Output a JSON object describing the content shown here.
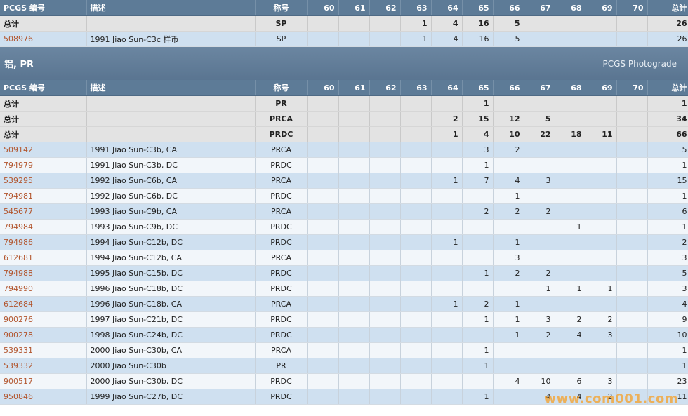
{
  "grades": [
    "60",
    "61",
    "62",
    "63",
    "64",
    "65",
    "66",
    "67",
    "68",
    "69",
    "70"
  ],
  "header": {
    "id": "PCGS 编号",
    "desc": "描述",
    "designation": "称号",
    "total": "总计"
  },
  "table1": {
    "totals": [
      {
        "label": "总计",
        "designation": "SP",
        "g": [
          "",
          "",
          "",
          "1",
          "4",
          "16",
          "5",
          "",
          "",
          "",
          ""
        ],
        "total": "26"
      }
    ],
    "rows": [
      {
        "id": "508976",
        "desc": "1991 Jiao Sun-C3c 样币",
        "designation": "SP",
        "g": [
          "",
          "",
          "",
          "1",
          "4",
          "16",
          "5",
          "",
          "",
          "",
          ""
        ],
        "total": "26"
      }
    ]
  },
  "section": {
    "title": "铝, PR",
    "subtitle": "PCGS Photograde"
  },
  "table2": {
    "totals": [
      {
        "label": "总计",
        "designation": "PR",
        "g": [
          "",
          "",
          "",
          "",
          "",
          "1",
          "",
          "",
          "",
          "",
          ""
        ],
        "total": "1"
      },
      {
        "label": "总计",
        "designation": "PRCA",
        "g": [
          "",
          "",
          "",
          "",
          "2",
          "15",
          "12",
          "5",
          "",
          "",
          ""
        ],
        "total": "34"
      },
      {
        "label": "总计",
        "designation": "PRDC",
        "g": [
          "",
          "",
          "",
          "",
          "1",
          "4",
          "10",
          "22",
          "18",
          "11",
          ""
        ],
        "total": "66"
      }
    ],
    "rows": [
      {
        "id": "509142",
        "desc": "1991 Jiao Sun-C3b, CA",
        "designation": "PRCA",
        "g": [
          "",
          "",
          "",
          "",
          "",
          "3",
          "2",
          "",
          "",
          "",
          ""
        ],
        "total": "5"
      },
      {
        "id": "794979",
        "desc": "1991 Jiao Sun-C3b, DC",
        "designation": "PRDC",
        "g": [
          "",
          "",
          "",
          "",
          "",
          "1",
          "",
          "",
          "",
          "",
          ""
        ],
        "total": "1"
      },
      {
        "id": "539295",
        "desc": "1992 Jiao Sun-C6b, CA",
        "designation": "PRCA",
        "g": [
          "",
          "",
          "",
          "",
          "1",
          "7",
          "4",
          "3",
          "",
          "",
          ""
        ],
        "total": "15"
      },
      {
        "id": "794981",
        "desc": "1992 Jiao Sun-C6b, DC",
        "designation": "PRDC",
        "g": [
          "",
          "",
          "",
          "",
          "",
          "",
          "1",
          "",
          "",
          "",
          ""
        ],
        "total": "1"
      },
      {
        "id": "545677",
        "desc": "1993 Jiao Sun-C9b, CA",
        "designation": "PRCA",
        "g": [
          "",
          "",
          "",
          "",
          "",
          "2",
          "2",
          "2",
          "",
          "",
          ""
        ],
        "total": "6"
      },
      {
        "id": "794984",
        "desc": "1993 Jiao Sun-C9b, DC",
        "designation": "PRDC",
        "g": [
          "",
          "",
          "",
          "",
          "",
          "",
          "",
          "",
          "1",
          "",
          ""
        ],
        "total": "1"
      },
      {
        "id": "794986",
        "desc": "1994 Jiao Sun-C12b, DC",
        "designation": "PRDC",
        "g": [
          "",
          "",
          "",
          "",
          "1",
          "",
          "1",
          "",
          "",
          "",
          ""
        ],
        "total": "2"
      },
      {
        "id": "612681",
        "desc": "1994 Jiao Sun-C12b, CA",
        "designation": "PRCA",
        "g": [
          "",
          "",
          "",
          "",
          "",
          "",
          "3",
          "",
          "",
          "",
          ""
        ],
        "total": "3"
      },
      {
        "id": "794988",
        "desc": "1995 Jiao Sun-C15b, DC",
        "designation": "PRDC",
        "g": [
          "",
          "",
          "",
          "",
          "",
          "1",
          "2",
          "2",
          "",
          "",
          ""
        ],
        "total": "5"
      },
      {
        "id": "794990",
        "desc": "1996 Jiao Sun-C18b, DC",
        "designation": "PRDC",
        "g": [
          "",
          "",
          "",
          "",
          "",
          "",
          "",
          "1",
          "1",
          "1",
          ""
        ],
        "total": "3"
      },
      {
        "id": "612684",
        "desc": "1996 Jiao Sun-C18b, CA",
        "designation": "PRCA",
        "g": [
          "",
          "",
          "",
          "",
          "1",
          "2",
          "1",
          "",
          "",
          "",
          ""
        ],
        "total": "4"
      },
      {
        "id": "900276",
        "desc": "1997 Jiao Sun-C21b, DC",
        "designation": "PRDC",
        "g": [
          "",
          "",
          "",
          "",
          "",
          "1",
          "1",
          "3",
          "2",
          "2",
          ""
        ],
        "total": "9"
      },
      {
        "id": "900278",
        "desc": "1998 Jiao Sun-C24b, DC",
        "designation": "PRDC",
        "g": [
          "",
          "",
          "",
          "",
          "",
          "",
          "1",
          "2",
          "4",
          "3",
          ""
        ],
        "total": "10"
      },
      {
        "id": "539331",
        "desc": "2000 Jiao Sun-C30b, CA",
        "designation": "PRCA",
        "g": [
          "",
          "",
          "",
          "",
          "",
          "1",
          "",
          "",
          "",
          "",
          ""
        ],
        "total": "1"
      },
      {
        "id": "539332",
        "desc": "2000 Jiao Sun-C30b",
        "designation": "PR",
        "g": [
          "",
          "",
          "",
          "",
          "",
          "1",
          "",
          "",
          "",
          "",
          ""
        ],
        "total": "1"
      },
      {
        "id": "900517",
        "desc": "2000 Jiao Sun-C30b, DC",
        "designation": "PRDC",
        "g": [
          "",
          "",
          "",
          "",
          "",
          "",
          "4",
          "10",
          "6",
          "3",
          ""
        ],
        "total": "23"
      },
      {
        "id": "950846",
        "desc": "1999 Jiao Sun-C27b, DC",
        "designation": "PRDC",
        "g": [
          "",
          "",
          "",
          "",
          "",
          "1",
          "",
          "4",
          "4",
          "2",
          ""
        ],
        "total": "11"
      }
    ]
  },
  "watermark": "www.com001.com"
}
